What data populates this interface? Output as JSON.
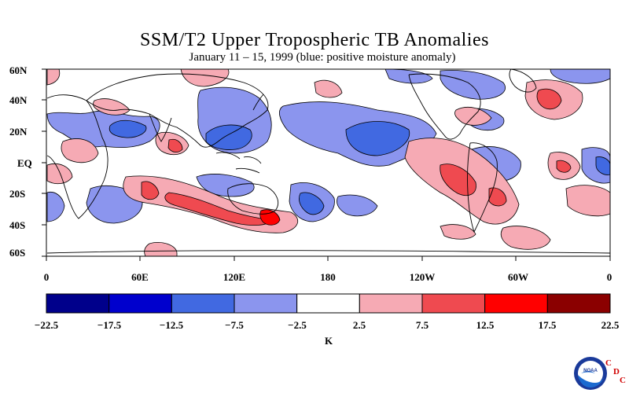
{
  "title": "SSM/T2 Upper Tropospheric TB Anomalies",
  "subtitle": "January 11 – 15, 1999 (blue: positive moisture anomaly)",
  "lat_labels": [
    "60N",
    "40N",
    "20N",
    "EQ",
    "20S",
    "40S",
    "60S"
  ],
  "lon_labels": [
    "0",
    "60E",
    "120E",
    "180",
    "120W",
    "60W",
    "0"
  ],
  "colorbar": {
    "labels": [
      "−22.5",
      "−17.5",
      "−12.5",
      "−7.5",
      "−2.5",
      "2.5",
      "7.5",
      "12.5",
      "17.5",
      "22.5"
    ],
    "units": "K",
    "colors": [
      "#00008b",
      "#0000cd",
      "#4169e1",
      "#8b95ee",
      "#ffffff",
      "#f6aab4",
      "#ef4a50",
      "#ff0000",
      "#8b0000"
    ]
  },
  "logo": {
    "name": "noaa-logo",
    "cdc_letters": [
      "C",
      "D",
      "C"
    ]
  }
}
